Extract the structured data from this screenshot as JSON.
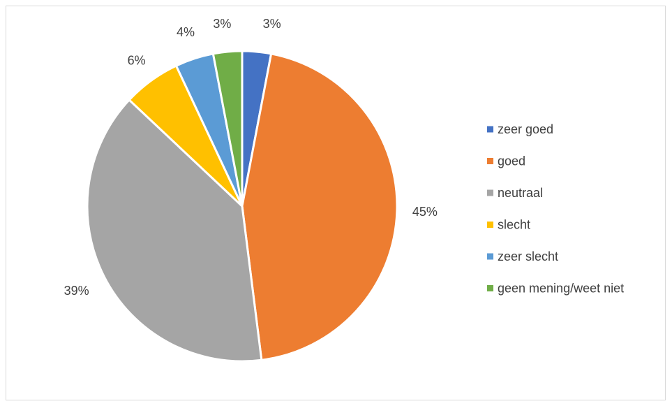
{
  "chart_data": {
    "type": "pie",
    "categories": [
      "zeer goed",
      "goed",
      "neutraal",
      "slecht",
      "zeer slecht",
      "geen mening/weet niet"
    ],
    "values": [
      3,
      45,
      39,
      6,
      4,
      3
    ],
    "labels": [
      "3%",
      "45%",
      "39%",
      "6%",
      "4%",
      "3%"
    ],
    "colors": [
      "#4472c4",
      "#ed7d31",
      "#a5a5a5",
      "#ffc000",
      "#5b9bd5",
      "#70ad47"
    ],
    "legend_position": "right",
    "title": ""
  }
}
